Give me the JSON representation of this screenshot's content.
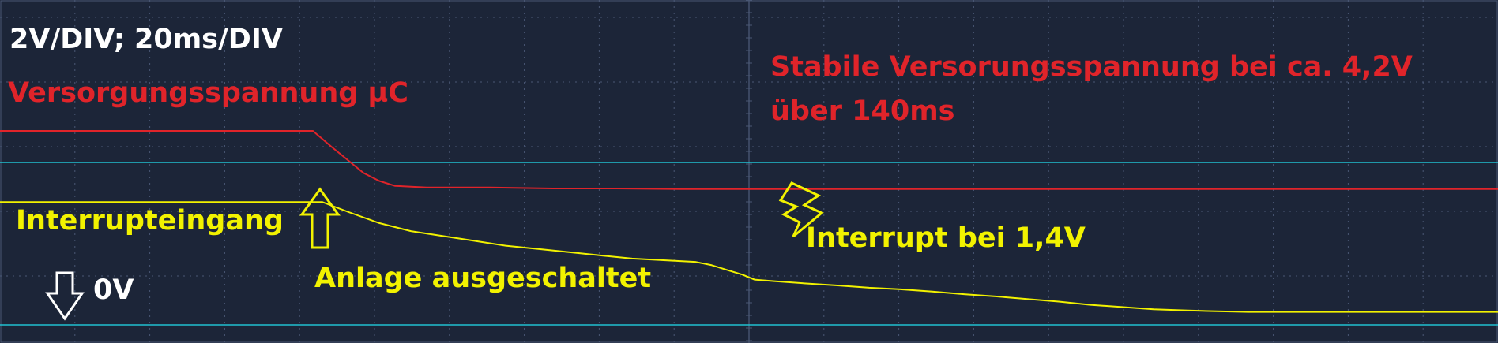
{
  "chart_data": {
    "type": "line",
    "scale_text": "2V/DIV; 20ms/DIV",
    "series": [
      {
        "name": "Versorgungsspannung µC",
        "color": "#e0242a",
        "x": [
          0,
          80,
          160,
          240,
          320,
          396,
          420,
          440,
          460,
          480,
          500,
          540,
          620,
          700,
          780,
          860,
          940,
          1020,
          1100,
          1180,
          1260,
          1340,
          1420,
          1500,
          1580,
          1660,
          1740,
          1820,
          1896
        ],
        "y": [
          6.0,
          6.0,
          6.0,
          6.0,
          6.0,
          6.0,
          5.5,
          5.1,
          4.7,
          4.45,
          4.3,
          4.25,
          4.25,
          4.22,
          4.22,
          4.2,
          4.2,
          4.2,
          4.2,
          4.2,
          4.2,
          4.2,
          4.2,
          4.2,
          4.2,
          4.2,
          4.2,
          4.2,
          4.2
        ]
      },
      {
        "name": "Interrupteingang",
        "color": "#f2f200",
        "x": [
          0,
          80,
          160,
          240,
          320,
          408,
          440,
          480,
          520,
          560,
          600,
          640,
          680,
          720,
          760,
          800,
          840,
          880,
          900,
          920,
          940,
          955,
          980,
          1020,
          1060,
          1100,
          1140,
          1180,
          1220,
          1260,
          1300,
          1340,
          1380,
          1420,
          1460,
          1500,
          1540,
          1580,
          1620,
          1700,
          1780,
          1860,
          1896
        ],
        "y": [
          3.8,
          3.8,
          3.8,
          3.8,
          3.8,
          3.8,
          3.5,
          3.15,
          2.9,
          2.75,
          2.6,
          2.45,
          2.35,
          2.25,
          2.15,
          2.05,
          2.0,
          1.95,
          1.85,
          1.7,
          1.55,
          1.4,
          1.35,
          1.28,
          1.22,
          1.15,
          1.1,
          1.03,
          0.95,
          0.88,
          0.8,
          0.72,
          0.62,
          0.55,
          0.48,
          0.45,
          0.42,
          0.4,
          0.4,
          0.4,
          0.4,
          0.4,
          0.4
        ]
      }
    ]
  },
  "annotations": {
    "scale": "2V/DIV; 20ms/DIV",
    "supply_label": "Versorgungsspannung µC",
    "stable_line1": "Stabile Versorungsspannung bei ca. 4,2V",
    "stable_line2": "über 140ms",
    "interrupt_input_label": "Interrupteingang",
    "switch_off_label": "Anlage ausgeschaltet",
    "interrupt_at_label": "Interrupt bei 1,4V",
    "zero_label": "0V"
  },
  "colors": {
    "background": "#1c2538",
    "grid": "#4a5875",
    "red_trace": "#e0242a",
    "yellow_trace": "#f2f200",
    "cyan_marker": "#20c0d0"
  }
}
